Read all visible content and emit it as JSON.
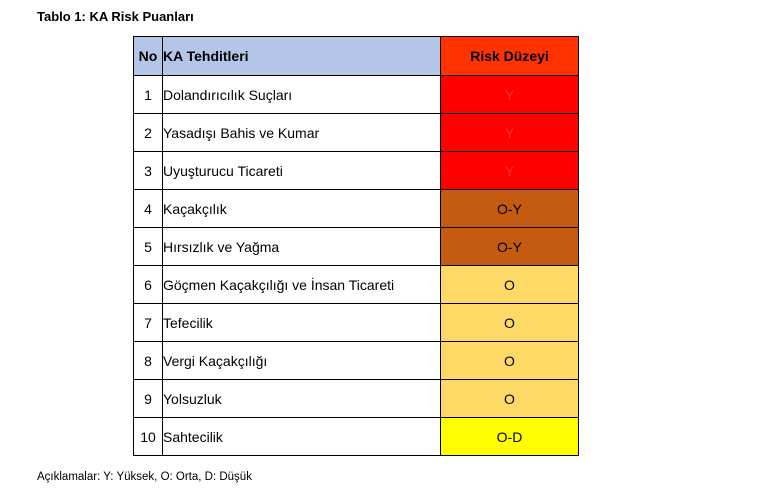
{
  "caption": "Tablo 1: KA Risk Puanları",
  "table": {
    "headers": {
      "no": "No",
      "name": "KA Tehditleri",
      "risk": "Risk Düzeyi"
    },
    "header_colors": {
      "left": "#b4c6e7",
      "risk": "#ff3300"
    },
    "rows": [
      {
        "no": "1",
        "name": "Dolandırıcılık Suçları",
        "risk": "Y",
        "color": "#ff0000"
      },
      {
        "no": "2",
        "name": "Yasadışı Bahis ve Kumar",
        "risk": "Y",
        "color": "#ff0000"
      },
      {
        "no": "3",
        "name": "Uyuşturucu Ticareti",
        "risk": "Y",
        "color": "#ff0000"
      },
      {
        "no": "4",
        "name": "Kaçakçılık",
        "risk": "O-Y",
        "color": "#c55a11"
      },
      {
        "no": "5",
        "name": "Hırsızlık ve Yağma",
        "risk": "O-Y",
        "color": "#c55a11"
      },
      {
        "no": "6",
        "name": "Göçmen Kaçakçılığı ve İnsan Ticareti",
        "risk": "O",
        "color": "#ffd966"
      },
      {
        "no": "7",
        "name": "Tefecilik",
        "risk": "O",
        "color": "#ffd966"
      },
      {
        "no": "8",
        "name": "Vergi Kaçakçılığı",
        "risk": "O",
        "color": "#ffd966"
      },
      {
        "no": "9",
        "name": "Yolsuzluk",
        "risk": "O",
        "color": "#ffd966"
      },
      {
        "no": "10",
        "name": "Sahtecilik",
        "risk": "O-D",
        "color": "#ffff00"
      }
    ]
  },
  "footnote": "Açıklamalar: Y: Yüksek, O: Orta, D: Düşük"
}
